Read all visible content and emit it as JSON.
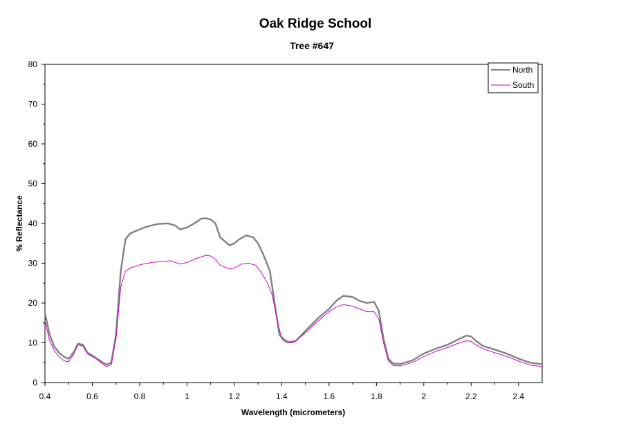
{
  "chart_data": {
    "type": "line",
    "title": "Oak Ridge School",
    "subtitle": "Tree #647",
    "xlabel": "Wavelength (micrometers)",
    "ylabel": "% Reflectance",
    "xlim": [
      0.4,
      2.5
    ],
    "ylim": [
      0,
      80
    ],
    "x_ticks": [
      "0.4",
      "0.6",
      "0.8",
      "1",
      "1.2",
      "1.4",
      "1.6",
      "1.8",
      "2",
      "2.2",
      "2.4"
    ],
    "y_ticks": [
      "0",
      "10",
      "20",
      "30",
      "40",
      "50",
      "60",
      "70",
      "80"
    ],
    "grid": false,
    "legend_position": "top-right",
    "series": [
      {
        "name": "North",
        "color": "#808080",
        "points": [
          [
            0.4,
            17.5
          ],
          [
            0.42,
            12
          ],
          [
            0.44,
            9
          ],
          [
            0.46,
            7.5
          ],
          [
            0.48,
            6.5
          ],
          [
            0.5,
            6
          ],
          [
            0.52,
            7.5
          ],
          [
            0.54,
            9.8
          ],
          [
            0.56,
            9.5
          ],
          [
            0.58,
            7.5
          ],
          [
            0.6,
            6.8
          ],
          [
            0.62,
            6
          ],
          [
            0.64,
            5.2
          ],
          [
            0.66,
            4.5
          ],
          [
            0.68,
            5
          ],
          [
            0.7,
            12
          ],
          [
            0.72,
            28
          ],
          [
            0.74,
            36
          ],
          [
            0.76,
            37.5
          ],
          [
            0.78,
            38
          ],
          [
            0.8,
            38.5
          ],
          [
            0.82,
            39
          ],
          [
            0.85,
            39.5
          ],
          [
            0.88,
            39.9
          ],
          [
            0.92,
            40
          ],
          [
            0.95,
            39.5
          ],
          [
            0.97,
            38.5
          ],
          [
            1.0,
            39
          ],
          [
            1.03,
            40
          ],
          [
            1.06,
            41.2
          ],
          [
            1.08,
            41.3
          ],
          [
            1.1,
            41
          ],
          [
            1.12,
            40
          ],
          [
            1.14,
            36.5
          ],
          [
            1.16,
            35.5
          ],
          [
            1.18,
            34.5
          ],
          [
            1.2,
            35
          ],
          [
            1.22,
            36
          ],
          [
            1.25,
            37
          ],
          [
            1.28,
            36.5
          ],
          [
            1.3,
            35
          ],
          [
            1.32,
            32.5
          ],
          [
            1.35,
            28
          ],
          [
            1.37,
            20
          ],
          [
            1.39,
            12
          ],
          [
            1.41,
            10.8
          ],
          [
            1.43,
            10.2
          ],
          [
            1.46,
            10.5
          ],
          [
            1.5,
            13
          ],
          [
            1.55,
            16
          ],
          [
            1.6,
            18.5
          ],
          [
            1.63,
            20.5
          ],
          [
            1.66,
            21.8
          ],
          [
            1.7,
            21.5
          ],
          [
            1.73,
            20.5
          ],
          [
            1.76,
            20
          ],
          [
            1.79,
            20.3
          ],
          [
            1.81,
            18
          ],
          [
            1.83,
            11
          ],
          [
            1.85,
            6
          ],
          [
            1.87,
            4.8
          ],
          [
            1.9,
            4.7
          ],
          [
            1.95,
            5.5
          ],
          [
            2.0,
            7.3
          ],
          [
            2.05,
            8.5
          ],
          [
            2.1,
            9.5
          ],
          [
            2.15,
            11
          ],
          [
            2.18,
            11.8
          ],
          [
            2.2,
            11.6
          ],
          [
            2.22,
            10.5
          ],
          [
            2.25,
            9.2
          ],
          [
            2.3,
            8.3
          ],
          [
            2.35,
            7.3
          ],
          [
            2.4,
            6
          ],
          [
            2.45,
            5
          ],
          [
            2.5,
            4.6
          ]
        ]
      },
      {
        "name": "South",
        "color": "#cc00cc",
        "points": [
          [
            0.4,
            15.5
          ],
          [
            0.42,
            10.5
          ],
          [
            0.44,
            8
          ],
          [
            0.46,
            6.5
          ],
          [
            0.48,
            5.5
          ],
          [
            0.5,
            5.2
          ],
          [
            0.52,
            7
          ],
          [
            0.54,
            9.5
          ],
          [
            0.56,
            9.2
          ],
          [
            0.58,
            7.2
          ],
          [
            0.6,
            6.5
          ],
          [
            0.62,
            5.8
          ],
          [
            0.64,
            4.8
          ],
          [
            0.66,
            4
          ],
          [
            0.68,
            4.5
          ],
          [
            0.7,
            11
          ],
          [
            0.72,
            24
          ],
          [
            0.74,
            28
          ],
          [
            0.76,
            28.8
          ],
          [
            0.78,
            29.2
          ],
          [
            0.8,
            29.6
          ],
          [
            0.85,
            30.2
          ],
          [
            0.9,
            30.5
          ],
          [
            0.93,
            30.6
          ],
          [
            0.97,
            29.8
          ],
          [
            1.0,
            30.2
          ],
          [
            1.04,
            31.2
          ],
          [
            1.08,
            32
          ],
          [
            1.1,
            31.8
          ],
          [
            1.12,
            31
          ],
          [
            1.14,
            29.5
          ],
          [
            1.16,
            29
          ],
          [
            1.18,
            28.5
          ],
          [
            1.2,
            28.8
          ],
          [
            1.23,
            29.8
          ],
          [
            1.26,
            30
          ],
          [
            1.29,
            29.5
          ],
          [
            1.31,
            28
          ],
          [
            1.34,
            25
          ],
          [
            1.36,
            22
          ],
          [
            1.38,
            16
          ],
          [
            1.4,
            11
          ],
          [
            1.42,
            10
          ],
          [
            1.45,
            10
          ],
          [
            1.5,
            12.5
          ],
          [
            1.55,
            15.3
          ],
          [
            1.6,
            17.8
          ],
          [
            1.63,
            19
          ],
          [
            1.66,
            19.6
          ],
          [
            1.7,
            19.2
          ],
          [
            1.73,
            18.5
          ],
          [
            1.76,
            17.8
          ],
          [
            1.79,
            17.8
          ],
          [
            1.81,
            16
          ],
          [
            1.83,
            10
          ],
          [
            1.85,
            5.5
          ],
          [
            1.87,
            4.3
          ],
          [
            1.9,
            4.2
          ],
          [
            1.95,
            5
          ],
          [
            2.0,
            6.5
          ],
          [
            2.05,
            7.8
          ],
          [
            2.1,
            8.8
          ],
          [
            2.15,
            10
          ],
          [
            2.18,
            10.5
          ],
          [
            2.2,
            10.4
          ],
          [
            2.22,
            9.5
          ],
          [
            2.25,
            8.5
          ],
          [
            2.3,
            7.5
          ],
          [
            2.35,
            6.6
          ],
          [
            2.4,
            5.4
          ],
          [
            2.45,
            4.4
          ],
          [
            2.5,
            4
          ]
        ]
      }
    ]
  }
}
